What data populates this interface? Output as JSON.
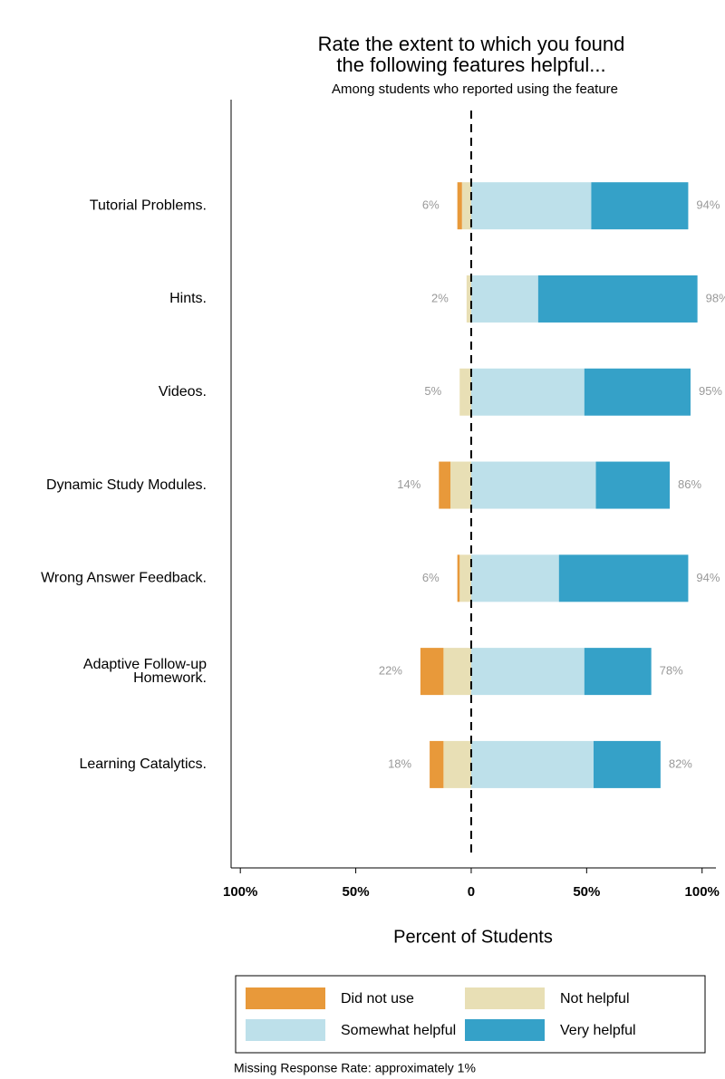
{
  "chart_data": {
    "type": "diverging_bar",
    "title": [
      "Rate the extent to which you found",
      "the following features helpful..."
    ],
    "subtitle": "Among students who reported using the feature",
    "x_label": "Percent of Students",
    "note": "Missing Response Rate: approximately 1%",
    "categories": [
      "Tutorial Problems.",
      "Hints.",
      "Videos.",
      "Dynamic Study Modules.",
      "Wrong Answer Feedback.",
      [
        "Adaptive Follow-up",
        "Homework."
      ],
      "Learning Catalytics."
    ],
    "series": [
      {
        "name": "Not helpful",
        "color": "#e8dfb5",
        "values": [
          -4,
          -2,
          -5,
          -9,
          -5,
          -12,
          -12
        ]
      },
      {
        "name": "Did not use",
        "color": "#e8993a",
        "values": [
          -2,
          0,
          0,
          -5,
          -1,
          -10,
          -6
        ]
      },
      {
        "name": "Somewhat helpful",
        "color": "#bde0ea",
        "values": [
          52,
          29,
          49,
          54,
          38,
          49,
          53
        ]
      },
      {
        "name": "Very helpful",
        "color": "#35a1c8",
        "values": [
          42,
          69,
          46,
          32,
          56,
          29,
          29
        ]
      }
    ],
    "left_labels": [
      "6%",
      "2%",
      "5%",
      "14%",
      "6%",
      "22%",
      "18%"
    ],
    "right_labels": [
      "94%",
      "98%",
      "95%",
      "86%",
      "94%",
      "78%",
      "82%"
    ],
    "xlim": [
      -104,
      106
    ],
    "xticks": [
      {
        "value": -100,
        "label": "100%"
      },
      {
        "value": -50,
        "label": "50%"
      },
      0,
      {
        "value": 50,
        "label": "50%"
      },
      {
        "value": 100,
        "label": "100%"
      }
    ],
    "legend_order": [
      1,
      2,
      0,
      3
    ]
  }
}
